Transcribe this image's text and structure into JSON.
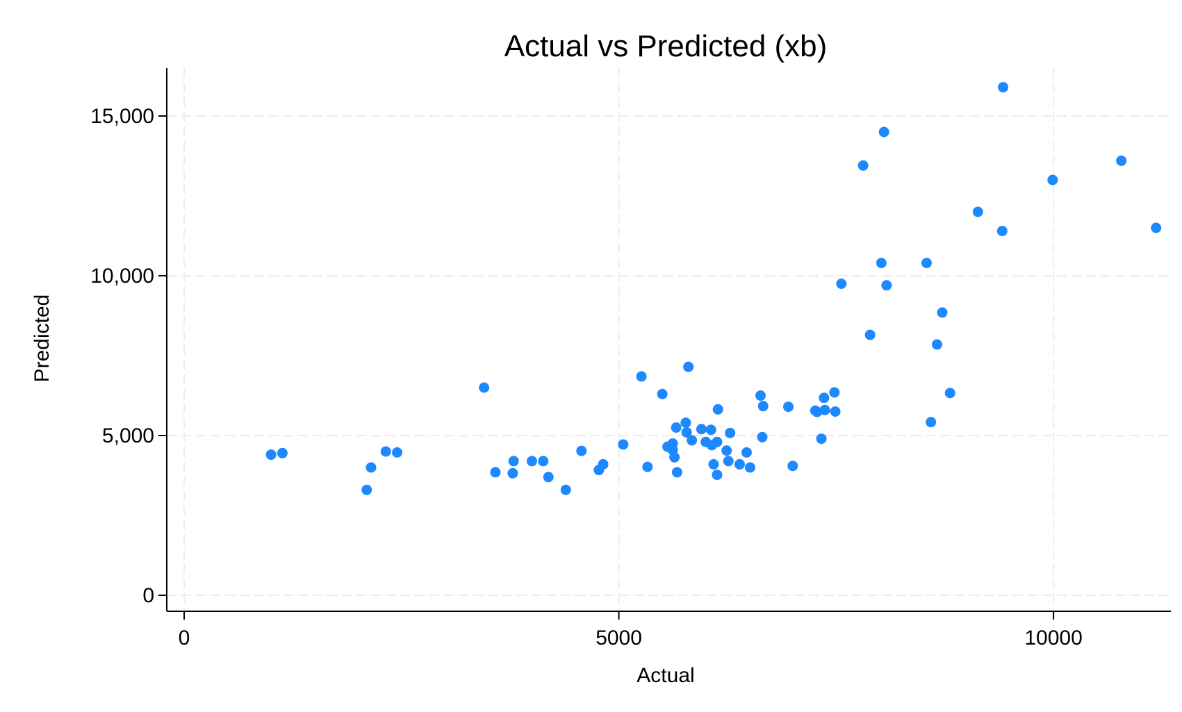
{
  "chart_data": {
    "type": "scatter",
    "title": "Actual vs Predicted (xb)",
    "xlabel": "Actual",
    "ylabel": "Predicted",
    "xlim": [
      -200,
      11350
    ],
    "ylim": [
      -500,
      16500
    ],
    "xticks": [
      0,
      5000,
      10000
    ],
    "xtick_labels": [
      "0",
      "5000",
      "10000"
    ],
    "yticks": [
      0,
      5000,
      10000,
      15000
    ],
    "ytick_labels": [
      "0",
      "5,000",
      "10,000",
      "15,000"
    ],
    "grid": true,
    "legend": "none",
    "point_color": "#1e88ff",
    "points": [
      [
        1000,
        4400
      ],
      [
        1130,
        4450
      ],
      [
        2100,
        3300
      ],
      [
        2150,
        4000
      ],
      [
        2320,
        4500
      ],
      [
        2450,
        4470
      ],
      [
        3450,
        6500
      ],
      [
        3580,
        3850
      ],
      [
        3780,
        3820
      ],
      [
        3790,
        4200
      ],
      [
        4000,
        4200
      ],
      [
        4130,
        4200
      ],
      [
        4190,
        3700
      ],
      [
        4390,
        3300
      ],
      [
        4570,
        4520
      ],
      [
        4770,
        3920
      ],
      [
        4820,
        4100
      ],
      [
        5050,
        4720
      ],
      [
        5260,
        6850
      ],
      [
        5330,
        4020
      ],
      [
        5500,
        6300
      ],
      [
        5560,
        4650
      ],
      [
        5620,
        4750
      ],
      [
        5620,
        4550
      ],
      [
        5640,
        4320
      ],
      [
        5660,
        5250
      ],
      [
        5670,
        3850
      ],
      [
        5770,
        5400
      ],
      [
        5780,
        5100
      ],
      [
        5800,
        7150
      ],
      [
        5840,
        4850
      ],
      [
        5950,
        5200
      ],
      [
        6000,
        4800
      ],
      [
        6060,
        5180
      ],
      [
        6070,
        4700
      ],
      [
        6090,
        4100
      ],
      [
        6130,
        3770
      ],
      [
        6130,
        4800
      ],
      [
        6140,
        5820
      ],
      [
        6240,
        4530
      ],
      [
        6260,
        4200
      ],
      [
        6280,
        5080
      ],
      [
        6390,
        4100
      ],
      [
        6470,
        4470
      ],
      [
        6510,
        4000
      ],
      [
        6630,
        6250
      ],
      [
        6650,
        4950
      ],
      [
        6660,
        5920
      ],
      [
        6950,
        5900
      ],
      [
        7000,
        4050
      ],
      [
        7260,
        5780
      ],
      [
        7280,
        5740
      ],
      [
        7330,
        4900
      ],
      [
        7360,
        6180
      ],
      [
        7370,
        5800
      ],
      [
        7480,
        6350
      ],
      [
        7490,
        5750
      ],
      [
        7560,
        9750
      ],
      [
        7810,
        13450
      ],
      [
        7890,
        8150
      ],
      [
        8020,
        10400
      ],
      [
        8050,
        14500
      ],
      [
        8080,
        9700
      ],
      [
        8540,
        10400
      ],
      [
        8590,
        5420
      ],
      [
        8660,
        7850
      ],
      [
        8720,
        8850
      ],
      [
        8810,
        6330
      ],
      [
        9130,
        12000
      ],
      [
        9410,
        11400
      ],
      [
        9420,
        15900
      ],
      [
        9990,
        13000
      ],
      [
        10780,
        13600
      ],
      [
        11180,
        11500
      ]
    ]
  }
}
